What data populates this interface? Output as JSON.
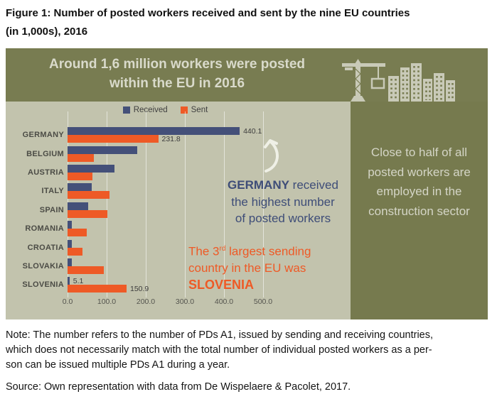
{
  "title": {
    "line1": "Figure 1: Number of posted workers received and sent by the nine EU countries",
    "line2": "(in 1,000s), 2016"
  },
  "header": {
    "line1": "Around 1,6 million workers were posted",
    "line2": "within the EU in 2016",
    "icon": "construction-crane-and-buildings-icon"
  },
  "side_panel": {
    "text": "Close to half of all posted workers are employed in the construction sector"
  },
  "annotations": {
    "germany": {
      "bold": "GERMANY",
      "rest": " received",
      "line2": "the highest number",
      "line3": "of posted workers"
    },
    "slovenia": {
      "pre": "The 3",
      "sup": "rd",
      "post": " largest sending",
      "line2": "country in the EU was",
      "bold": "SLOVENIA"
    },
    "arrow_icon": "curved-up-arrow-icon"
  },
  "chart_data": {
    "type": "bar",
    "orientation": "horizontal",
    "title": "Number of posted workers received and sent by the nine EU countries (in 1,000s), 2016",
    "categories": [
      "GERMANY",
      "BELGIUM",
      "AUSTRIA",
      "ITALY",
      "SPAIN",
      "ROMANIA",
      "CROATIA",
      "SLOVAKIA",
      "SLOVENIA"
    ],
    "series": [
      {
        "name": "Received",
        "color": "#445079",
        "values": [
          440.1,
          178,
          120,
          61,
          52,
          10,
          10,
          11,
          5.1
        ],
        "data_labels": [
          "440.1",
          null,
          null,
          null,
          null,
          null,
          null,
          null,
          "5.1"
        ]
      },
      {
        "name": "Sent",
        "color": "#ee5a26",
        "values": [
          231.8,
          68,
          63,
          108,
          102,
          49,
          38,
          92,
          150.9
        ],
        "data_labels": [
          "231.8",
          null,
          null,
          null,
          null,
          null,
          null,
          null,
          "150.9"
        ]
      }
    ],
    "xlim": [
      0,
      500
    ],
    "x_ticks": [
      "0.0",
      "100.0",
      "200.0",
      "300.0",
      "400.0",
      "500.0"
    ],
    "grid": true,
    "legend_position": "top-center"
  },
  "note": {
    "lines": [
      "Note: The number refers to the number of PDs A1, issued by sending and receiving countries,",
      "which does not necessarily match with the total number of individual posted workers as a per-",
      "son can be issued multiple PDs A1 during a year."
    ]
  },
  "source": {
    "text": "Source: Own representation with data from De Wispelaere & Pacolet, 2017."
  },
  "colors": {
    "received_navy": "#445079",
    "sent_orange": "#ee5a26",
    "header_olive": "#787c51",
    "panel_olive": "#767a4e",
    "chart_background": "#c2c3ad",
    "light_text": "#d9dacb"
  }
}
